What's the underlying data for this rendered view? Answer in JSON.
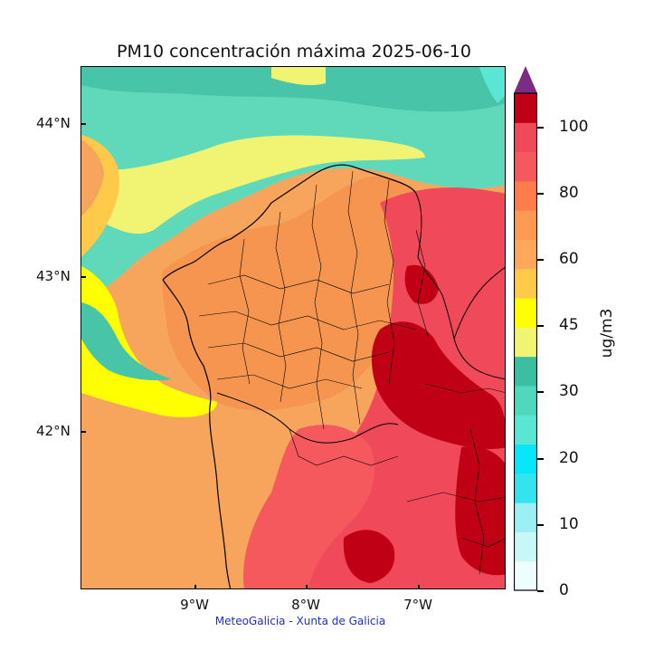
{
  "title": "PM10 concentración máxima 2025-06-10",
  "credit": "MeteoGalicia - Xunta de Galicia",
  "map": {
    "region": "Galicia",
    "field": "PM10 concentración máxima",
    "lat_labels": [
      "44°N",
      "43°N",
      "42°N"
    ],
    "lon_labels": [
      "9°W",
      "8°W",
      "7°W"
    ]
  },
  "colorbar": {
    "unit": "ug/m3",
    "tick_labels": [
      "0",
      "10",
      "20",
      "30",
      "45",
      "60",
      "80",
      "100"
    ],
    "extend": "max",
    "extend_color": "#7b2d85",
    "level_colors": [
      "#eefdfd",
      "#c8f7f7",
      "#9ceff2",
      "#35e3ef",
      "#07e6fb",
      "#59e7d4",
      "#4fd8bd",
      "#3cbfa0",
      "#f1f472",
      "#ffff00",
      "#ffc94a",
      "#ffa85c",
      "#ff9a52",
      "#ff7c4c",
      "#f5595d",
      "#f04a5a",
      "#c00014"
    ]
  }
}
